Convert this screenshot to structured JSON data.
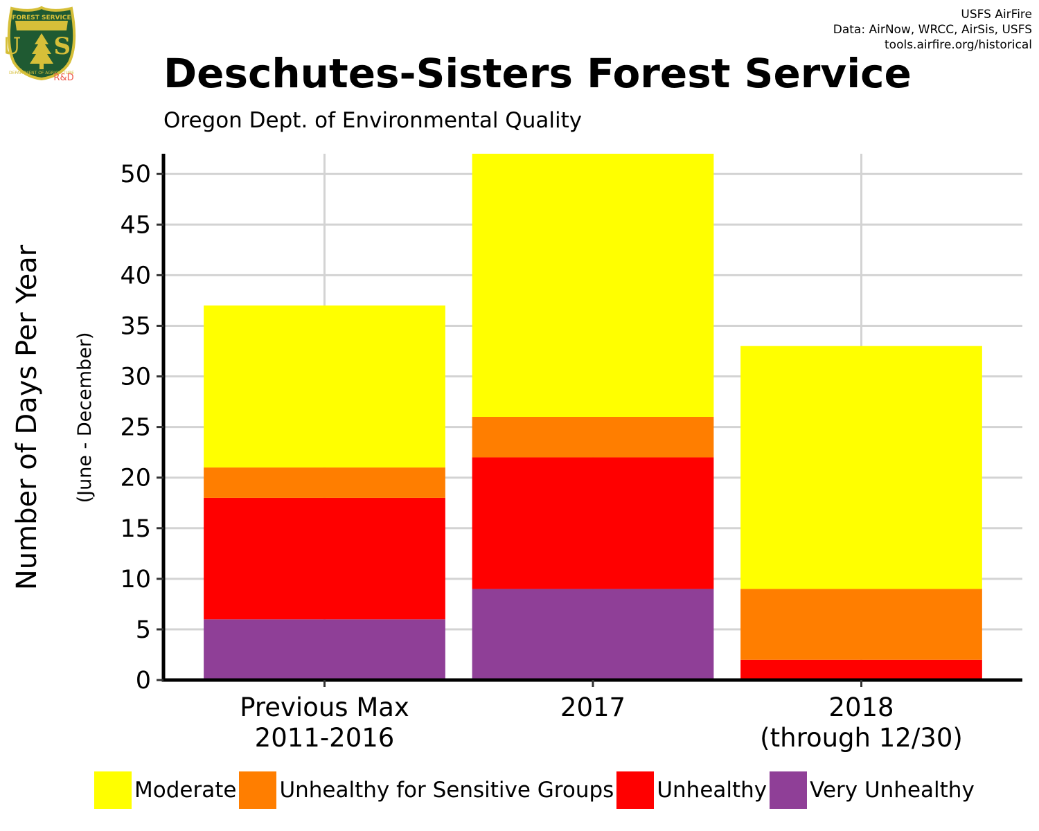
{
  "header": {
    "title": "Deschutes-Sisters Forest Service",
    "subtitle": "Oregon Dept. of Environmental Quality",
    "credits": [
      "USFS AirFire",
      "Data: AirNow, WRCC, AirSis, USFS",
      "tools.airfire.org/historical"
    ]
  },
  "logo": {
    "top_text": "FOREST SERVICE",
    "letters": "U S",
    "bottom_text": "DEPARTMENT OF AGRICULTURE",
    "tag": "R&D"
  },
  "chart_data": {
    "type": "bar",
    "stacked": true,
    "categories": [
      [
        "Previous Max",
        "2011-2016"
      ],
      [
        "2017"
      ],
      [
        "2018",
        "(through 12/30)"
      ]
    ],
    "series": [
      {
        "name": "Very Unhealthy",
        "color": "#8f3f97",
        "values": [
          6,
          9,
          0
        ]
      },
      {
        "name": "Unhealthy",
        "color": "#ff0000",
        "values": [
          12,
          13,
          2
        ]
      },
      {
        "name": "Unhealthy for Sensitive Groups",
        "color": "#ff7e00",
        "values": [
          3,
          4,
          7
        ]
      },
      {
        "name": "Moderate",
        "color": "#ffff00",
        "values": [
          16,
          26,
          24
        ]
      }
    ],
    "legend_order": [
      "Moderate",
      "Unhealthy for Sensitive Groups",
      "Unhealthy",
      "Very Unhealthy"
    ],
    "ylabel": "Number of Days Per Year",
    "ylabel_sub": "(June - December)",
    "xlabel": "",
    "ylim": [
      0,
      52
    ],
    "yticks": [
      0,
      5,
      10,
      15,
      20,
      25,
      30,
      35,
      40,
      45,
      50
    ],
    "grid": true,
    "legend_position": "bottom"
  }
}
